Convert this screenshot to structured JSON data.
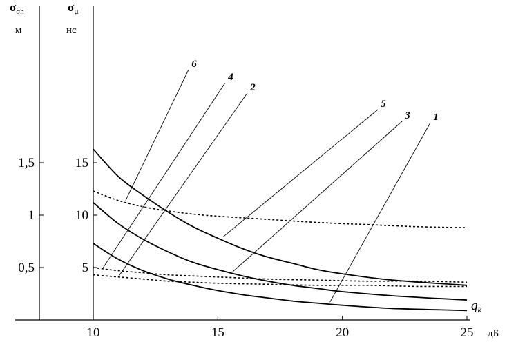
{
  "chart_data": {
    "type": "line",
    "xlabel": "q_k",
    "xunit": "дБ",
    "xlim": [
      10,
      25
    ],
    "x_ticks": [
      "10",
      "15",
      "20",
      "25"
    ],
    "left_axis": {
      "symbol": "σ",
      "subscript": "σh",
      "unit": "м",
      "ylim": [
        0,
        3
      ],
      "ticks": [
        {
          "label": "0,5",
          "value": 0.5
        },
        {
          "label": "1",
          "value": 1
        },
        {
          "label": "1,5",
          "value": 1.5
        }
      ]
    },
    "right_axis": {
      "symbol": "σ",
      "subscript": "μ",
      "unit": "нс",
      "ylim": [
        0,
        30
      ],
      "ticks": [
        {
          "label": "5",
          "value": 5
        },
        {
          "label": "10",
          "value": 10
        },
        {
          "label": "15",
          "value": 15
        }
      ]
    },
    "series": [
      {
        "name": "1",
        "style": "solid",
        "x": [
          10,
          11,
          12,
          13,
          14,
          15,
          16,
          17,
          18,
          19,
          20,
          22,
          25
        ],
        "y": [
          7.3,
          5.8,
          4.7,
          3.9,
          3.3,
          2.8,
          2.4,
          2.1,
          1.8,
          1.6,
          1.4,
          1.1,
          0.9
        ]
      },
      {
        "name": "2",
        "style": "dotted",
        "x": [
          10,
          11,
          12,
          13,
          14,
          15,
          17,
          19,
          21,
          23,
          25
        ],
        "y": [
          4.3,
          4.1,
          3.9,
          3.7,
          3.6,
          3.5,
          3.4,
          3.3,
          3.3,
          3.2,
          3.2
        ]
      },
      {
        "name": "3",
        "style": "solid",
        "x": [
          10,
          11,
          12,
          13,
          14,
          15,
          16,
          17,
          18,
          19,
          20,
          22,
          25
        ],
        "y": [
          11.2,
          9.2,
          7.7,
          6.5,
          5.5,
          4.8,
          4.2,
          3.7,
          3.3,
          3.0,
          2.7,
          2.3,
          1.9
        ]
      },
      {
        "name": "4",
        "style": "dotted",
        "x": [
          10,
          11,
          12,
          13,
          14,
          15,
          17,
          19,
          21,
          23,
          25
        ],
        "y": [
          5.0,
          4.7,
          4.5,
          4.3,
          4.2,
          4.1,
          3.9,
          3.8,
          3.7,
          3.7,
          3.6
        ]
      },
      {
        "name": "5",
        "style": "solid",
        "x": [
          10,
          11,
          12,
          13,
          14,
          15,
          16,
          17,
          18,
          19,
          20,
          22,
          25
        ],
        "y": [
          16.3,
          13.7,
          11.9,
          10.3,
          8.9,
          7.8,
          6.8,
          6.0,
          5.4,
          4.8,
          4.4,
          3.8,
          3.3
        ]
      },
      {
        "name": "6",
        "style": "dotted",
        "x": [
          10,
          11,
          12,
          13,
          14,
          15,
          17,
          19,
          21,
          23,
          25
        ],
        "y": [
          12.3,
          11.4,
          10.8,
          10.4,
          10.1,
          9.9,
          9.6,
          9.3,
          9.1,
          8.9,
          8.8
        ]
      }
    ],
    "annotations": [
      {
        "label": "6",
        "points_to": {
          "x": 11.3,
          "y": 11.4
        }
      },
      {
        "label": "4",
        "points_to": {
          "x": 10.4,
          "y": 5.0
        }
      },
      {
        "label": "2",
        "points_to": {
          "x": 11.0,
          "y": 4.1
        }
      },
      {
        "label": "5",
        "points_to": {
          "x": 15.2,
          "y": 7.9
        }
      },
      {
        "label": "3",
        "points_to": {
          "x": 15.6,
          "y": 4.6
        }
      },
      {
        "label": "1",
        "points_to": {
          "x": 19.5,
          "y": 1.7
        }
      }
    ]
  }
}
